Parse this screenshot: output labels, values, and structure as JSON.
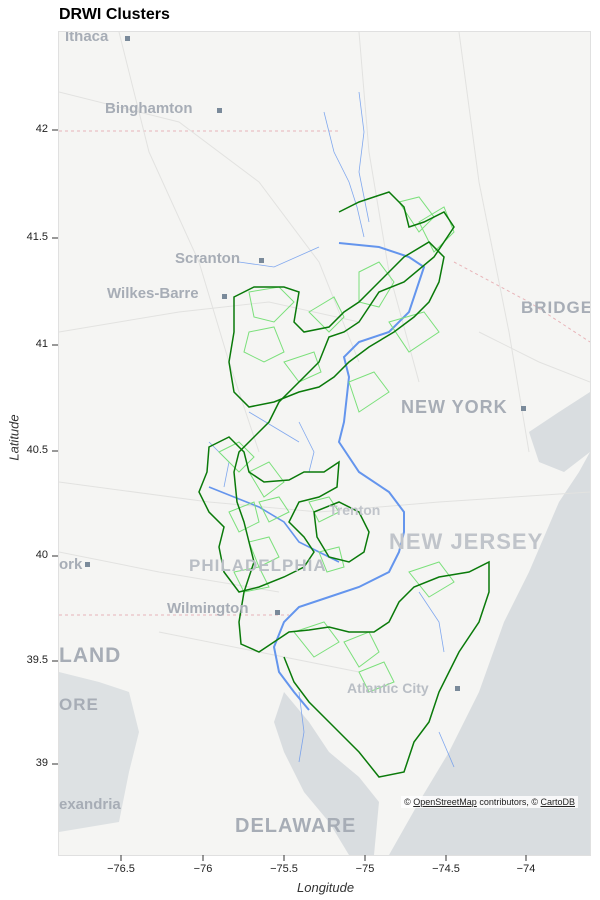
{
  "title": "DRWI Clusters",
  "axes": {
    "xlabel": "Longitude",
    "ylabel": "Latitude",
    "xticks": [
      "−76.5",
      "−76",
      "−75.5",
      "−75",
      "−74.5",
      "−74"
    ],
    "yticks": [
      "42",
      "41.5",
      "41",
      "40.5",
      "40",
      "39.5",
      "39"
    ]
  },
  "map_labels": {
    "ithaca": "Ithaca",
    "binghamton": "Binghamton",
    "scranton": "Scranton",
    "wilkes_barre": "Wilkes-Barre",
    "bridge": "BRIDGE",
    "new_york": "NEW YORK",
    "trenton": "Trenton",
    "new_jersey": "NEW JERSEY",
    "philadelphia": "PHILADELPHIA",
    "york": "ork",
    "wilmington": "Wilmington",
    "atlantic_city": "Atlantic City",
    "maryland": "LAND",
    "baltimore": "ORE",
    "alexandria": "exandria",
    "delaware": "DELAWARE"
  },
  "attribution": {
    "prefix": "©",
    "osm": "OpenStreetMap",
    "middle": "contributors, ©",
    "carto": "CartoDB"
  },
  "colors": {
    "cluster_outline": "#0a7a0a",
    "subwatershed_outline": "#7be07b",
    "river": "#6495ed",
    "water": "#d9dde0",
    "land": "#f3f3f1"
  }
}
